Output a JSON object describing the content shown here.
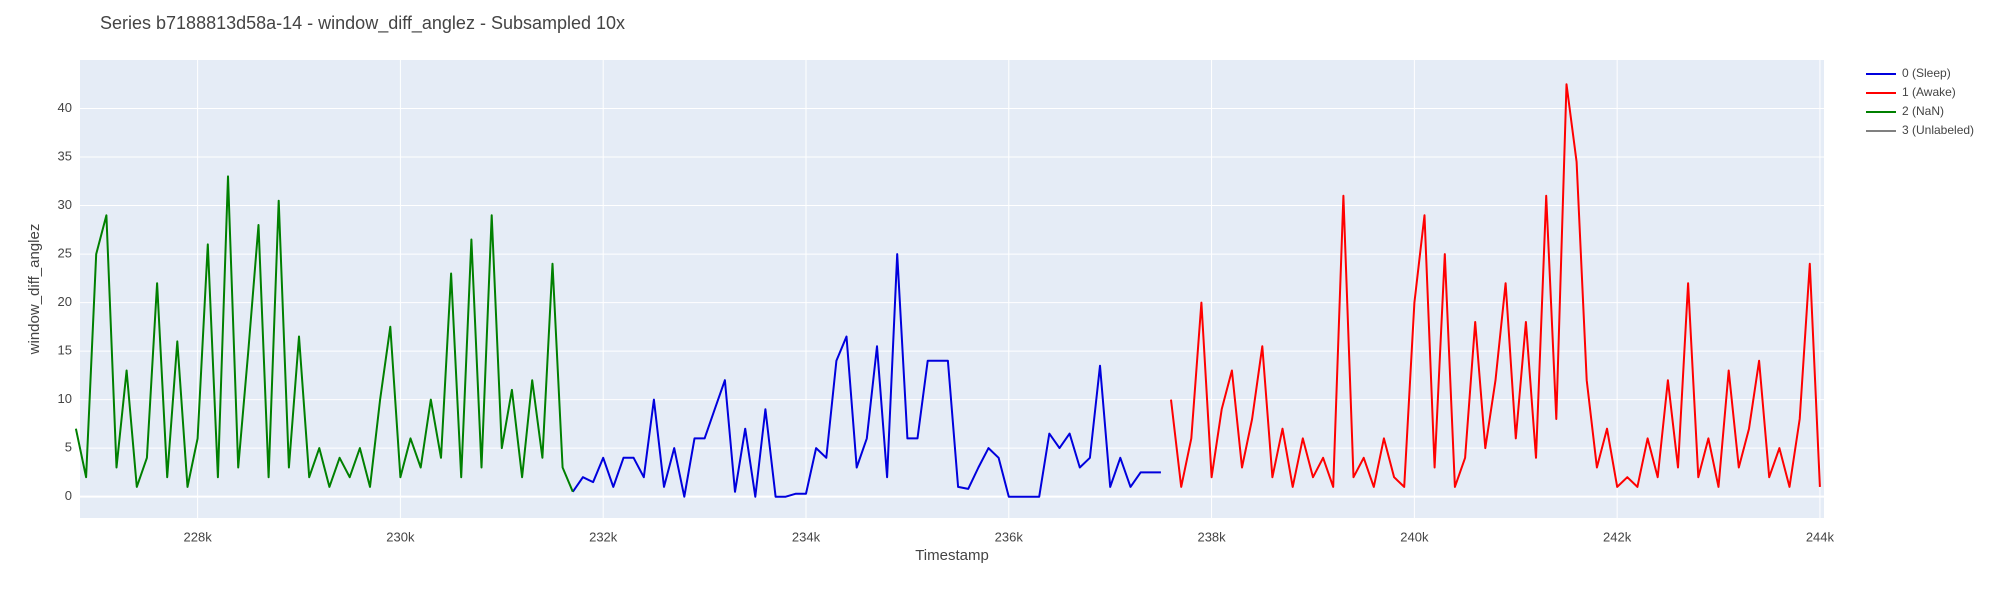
{
  "chart_data": {
    "type": "line",
    "title": "Series b7188813d58a-14 - window_diff_anglez - Subsampled 10x",
    "x_label": "Timestamp",
    "y_label": "window_diff_anglez",
    "xlim": [
      226840,
      244040
    ],
    "ylim": [
      -2.2,
      45
    ],
    "xticks": [
      {
        "value": 228000,
        "label": "228k"
      },
      {
        "value": 230000,
        "label": "230k"
      },
      {
        "value": 232000,
        "label": "232k"
      },
      {
        "value": 234000,
        "label": "234k"
      },
      {
        "value": 236000,
        "label": "236k"
      },
      {
        "value": 238000,
        "label": "238k"
      },
      {
        "value": 240000,
        "label": "240k"
      },
      {
        "value": 242000,
        "label": "242k"
      },
      {
        "value": 244000,
        "label": "244k"
      }
    ],
    "yticks": [
      0,
      5,
      10,
      15,
      20,
      25,
      30,
      35,
      40
    ],
    "grid": true,
    "series": [
      {
        "name": "0 (Sleep)",
        "color": "#0000dd",
        "x": [
          231700,
          231800,
          231900,
          232000,
          232100,
          232200,
          232300,
          232400,
          232500,
          232600,
          232700,
          232800,
          232900,
          233000,
          233100,
          233200,
          233300,
          233400,
          233500,
          233600,
          233700,
          233800,
          233900,
          234000,
          234100,
          234200,
          234300,
          234400,
          234500,
          234600,
          234700,
          234800,
          234900,
          235000,
          235100,
          235200,
          235300,
          235400,
          235500,
          235600,
          235700,
          235800,
          235900,
          236000,
          236100,
          236200,
          236300,
          236400,
          236500,
          236600,
          236700,
          236800,
          236900,
          237000,
          237100,
          237200,
          237300,
          237400,
          237500
        ],
        "values": [
          0.5,
          2,
          1.5,
          4,
          1,
          4,
          4,
          2,
          10,
          1,
          5,
          0,
          6,
          6,
          9,
          12,
          0.5,
          7,
          0,
          9,
          0,
          0,
          0.3,
          0.3,
          5,
          4,
          14,
          16.5,
          3,
          6,
          15.5,
          2,
          25,
          6,
          6,
          14,
          14,
          14,
          1,
          0.8,
          3,
          5,
          4,
          0,
          0,
          0,
          0,
          6.5,
          5,
          6.5,
          3,
          4,
          13.5,
          1,
          4,
          1,
          2.5,
          2.5,
          2.5
        ]
      },
      {
        "name": "1 (Awake)",
        "color": "#ff0000",
        "x": [
          237600,
          237700,
          237800,
          237900,
          238000,
          238100,
          238200,
          238300,
          238400,
          238500,
          238600,
          238700,
          238800,
          238900,
          239000,
          239100,
          239200,
          239300,
          239400,
          239500,
          239600,
          239700,
          239800,
          239900,
          240000,
          240100,
          240200,
          240300,
          240400,
          240500,
          240600,
          240700,
          240800,
          240900,
          241000,
          241100,
          241200,
          241300,
          241400,
          241500,
          241600,
          241700,
          241800,
          241900,
          242000,
          242100,
          242200,
          242300,
          242400,
          242500,
          242600,
          242700,
          242800,
          242900,
          243000,
          243100,
          243200,
          243300,
          243400,
          243500,
          243600,
          243700,
          243800,
          243900,
          244000
        ],
        "values": [
          10,
          1,
          6,
          20,
          2,
          9,
          13,
          3,
          8,
          15.5,
          2,
          7,
          1,
          6,
          2,
          4,
          1,
          31,
          2,
          4,
          1,
          6,
          2,
          1,
          20,
          29,
          3,
          25,
          1,
          4,
          18,
          5,
          12,
          22,
          6,
          18,
          4,
          31,
          8,
          42.5,
          34.5,
          12,
          3,
          7,
          1,
          2,
          1,
          6,
          2,
          12,
          3,
          22,
          2,
          6,
          1,
          13,
          3,
          7,
          14,
          2,
          5,
          1,
          8,
          24,
          1
        ]
      },
      {
        "name": "2 (NaN)",
        "color": "#008000",
        "x": [
          226800,
          226900,
          227000,
          227100,
          227200,
          227300,
          227400,
          227500,
          227600,
          227700,
          227800,
          227900,
          228000,
          228100,
          228200,
          228300,
          228400,
          228500,
          228600,
          228700,
          228800,
          228900,
          229000,
          229100,
          229200,
          229300,
          229400,
          229500,
          229600,
          229700,
          229800,
          229900,
          230000,
          230100,
          230200,
          230300,
          230400,
          230500,
          230600,
          230700,
          230800,
          230900,
          231000,
          231100,
          231200,
          231300,
          231400,
          231500,
          231600,
          231700
        ],
        "values": [
          7,
          2,
          25,
          29,
          3,
          13,
          1,
          4,
          22,
          2,
          16,
          1,
          6,
          26,
          2,
          33,
          3,
          15,
          28,
          2,
          30.5,
          3,
          16.5,
          2,
          5,
          1,
          4,
          2,
          5,
          1,
          10,
          17.5,
          2,
          6,
          3,
          10,
          4,
          23,
          2,
          26.5,
          3,
          29,
          5,
          11,
          2,
          12,
          4,
          24,
          3,
          0.5
        ]
      },
      {
        "name": "3 (Unlabeled)",
        "color": "#808080",
        "x": [],
        "values": []
      }
    ]
  }
}
